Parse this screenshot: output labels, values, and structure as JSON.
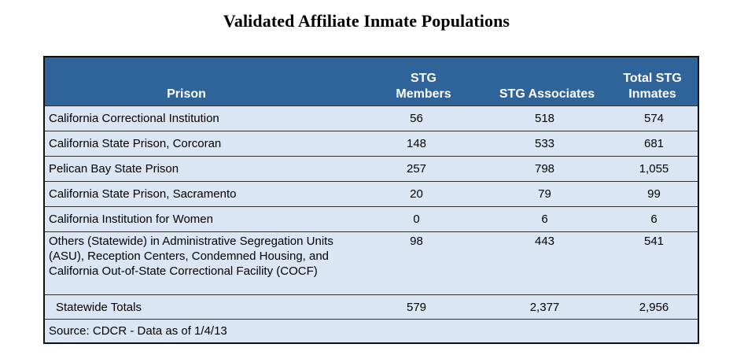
{
  "title": "Validated Affiliate Inmate Populations",
  "table": {
    "headers": {
      "prison": "Prison",
      "members": "STG Members",
      "associates": "STG Associates",
      "total_line1": "Total STG",
      "total_line2": "Inmates"
    },
    "rows": [
      {
        "prison": "California Correctional Institution",
        "members": "56",
        "associates": "518",
        "total": "574"
      },
      {
        "prison": "California State Prison, Corcoran",
        "members": "148",
        "associates": "533",
        "total": "681"
      },
      {
        "prison": "Pelican Bay State Prison",
        "members": "257",
        "associates": "798",
        "total": "1,055"
      },
      {
        "prison": "California State Prison, Sacramento",
        "members": "20",
        "associates": "79",
        "total": "99"
      },
      {
        "prison": "California Institution for Women",
        "members": "0",
        "associates": "6",
        "total": "6"
      },
      {
        "prison": "Others (Statewide) in Administrative Segregation Units (ASU), Reception Centers, Condemned Housing, and California Out-of-State Correctional Facility (COCF)",
        "members": "98",
        "associates": "443",
        "total": "541"
      }
    ],
    "totals": {
      "label": "Statewide Totals",
      "members": "579",
      "associates": "2,377",
      "total": "2,956"
    },
    "source": "Source: CDCR  - Data as of 1/4/13"
  },
  "colors": {
    "header_bg": "#2f649b",
    "body_bg": "#dbe6f5"
  }
}
